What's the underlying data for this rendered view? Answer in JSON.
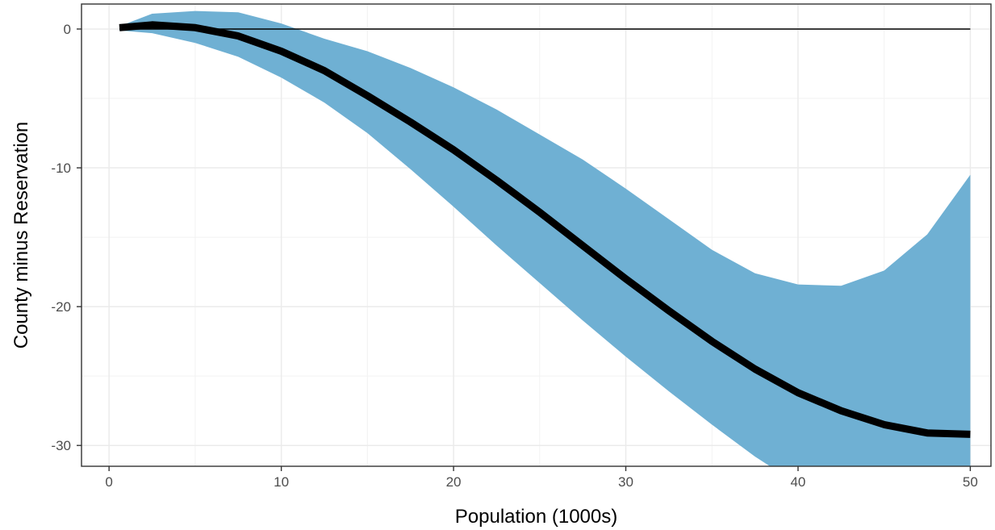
{
  "chart_data": {
    "type": "line",
    "title": "",
    "xlabel": "Population (1000s)",
    "ylabel": "County minus Reservation",
    "xlim": [
      -1.6,
      51.2
    ],
    "ylim": [
      -31.5,
      1.8
    ],
    "x_ticks": [
      0,
      10,
      20,
      30,
      40,
      50
    ],
    "x_tick_labels": [
      "0",
      "10",
      "20",
      "30",
      "40",
      "50"
    ],
    "y_ticks": [
      0,
      -10,
      -20,
      -30
    ],
    "y_tick_labels": [
      "0",
      "-10",
      "-20",
      "-30"
    ],
    "grid": true,
    "reference_line": {
      "y": 0,
      "x_range": [
        0.6,
        50
      ],
      "color": "#000000"
    },
    "series": [
      {
        "kind": "line",
        "color": "#000000",
        "x": [
          0.6,
          2.5,
          5,
          7.5,
          10,
          12.5,
          15,
          17.5,
          20,
          22.5,
          25,
          27.5,
          30,
          32.5,
          35,
          37.5,
          40,
          42.5,
          45,
          47.5,
          50
        ],
        "y": [
          0.1,
          0.3,
          0.1,
          -0.5,
          -1.6,
          -3.0,
          -4.8,
          -6.7,
          -8.7,
          -10.9,
          -13.2,
          -15.6,
          -18.0,
          -20.3,
          -22.5,
          -24.5,
          -26.2,
          -27.5,
          -28.5,
          -29.1,
          -29.2
        ]
      },
      {
        "kind": "band",
        "color": "#6fb0d3",
        "x": [
          0.6,
          2.5,
          5,
          7.5,
          10,
          12.5,
          15,
          17.5,
          20,
          22.5,
          25,
          27.5,
          30,
          32.5,
          35,
          37.5,
          40,
          42.5,
          45,
          47.5,
          50
        ],
        "upper": [
          0.2,
          1.1,
          1.3,
          1.2,
          0.4,
          -0.7,
          -1.6,
          -2.8,
          -4.2,
          -5.8,
          -7.6,
          -9.4,
          -11.5,
          -13.7,
          -15.9,
          -17.6,
          -18.4,
          -18.5,
          -17.4,
          -14.8,
          -10.5
        ],
        "lower": [
          -0.1,
          -0.3,
          -1.0,
          -2.0,
          -3.5,
          -5.3,
          -7.5,
          -10.1,
          -12.8,
          -15.6,
          -18.3,
          -21.0,
          -23.6,
          -26.1,
          -28.5,
          -30.8,
          -32.8,
          -34.5,
          -35.8,
          -36.6,
          -36.9
        ]
      }
    ]
  }
}
